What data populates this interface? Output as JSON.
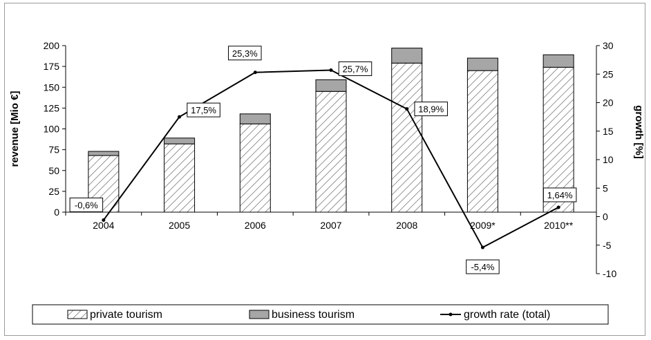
{
  "chart_data": {
    "type": "bar",
    "categories": [
      "2004",
      "2005",
      "2006",
      "2007",
      "2008",
      "2009*",
      "2010**"
    ],
    "series": [
      {
        "name": "private tourism",
        "type": "bar",
        "stack": "revenue",
        "values": [
          68,
          82,
          106,
          145,
          179,
          170,
          174
        ]
      },
      {
        "name": "business tourism",
        "type": "bar",
        "stack": "revenue",
        "values": [
          5,
          7,
          12,
          14,
          18,
          15,
          15
        ]
      },
      {
        "name": "growth rate (total)",
        "type": "line",
        "axis": "right",
        "values": [
          -0.6,
          17.5,
          25.3,
          25.7,
          18.9,
          -5.4,
          1.64
        ]
      }
    ],
    "point_labels": [
      "-0,6%",
      "17,5%",
      "25,3%",
      "25,7%",
      "18,9%",
      "-5,4%",
      "1,64%"
    ],
    "ylabel": "revenue [Mio €]",
    "ylabel_right": "growth [%]",
    "ylim": [
      0,
      200
    ],
    "ylim_right": [
      -10,
      30
    ],
    "yticks": [
      "0",
      "25",
      "50",
      "75",
      "100",
      "125",
      "150",
      "175",
      "200"
    ],
    "yticks_right": [
      "-10",
      "-5",
      "0",
      "5",
      "10",
      "15",
      "20",
      "25",
      "30"
    ],
    "legend_position": "bottom",
    "grid": false,
    "colors": {
      "private_hatch": "#7a7a7a",
      "business_fill": "#a6a6a6",
      "line": "#000000",
      "axis": "#000000"
    }
  }
}
